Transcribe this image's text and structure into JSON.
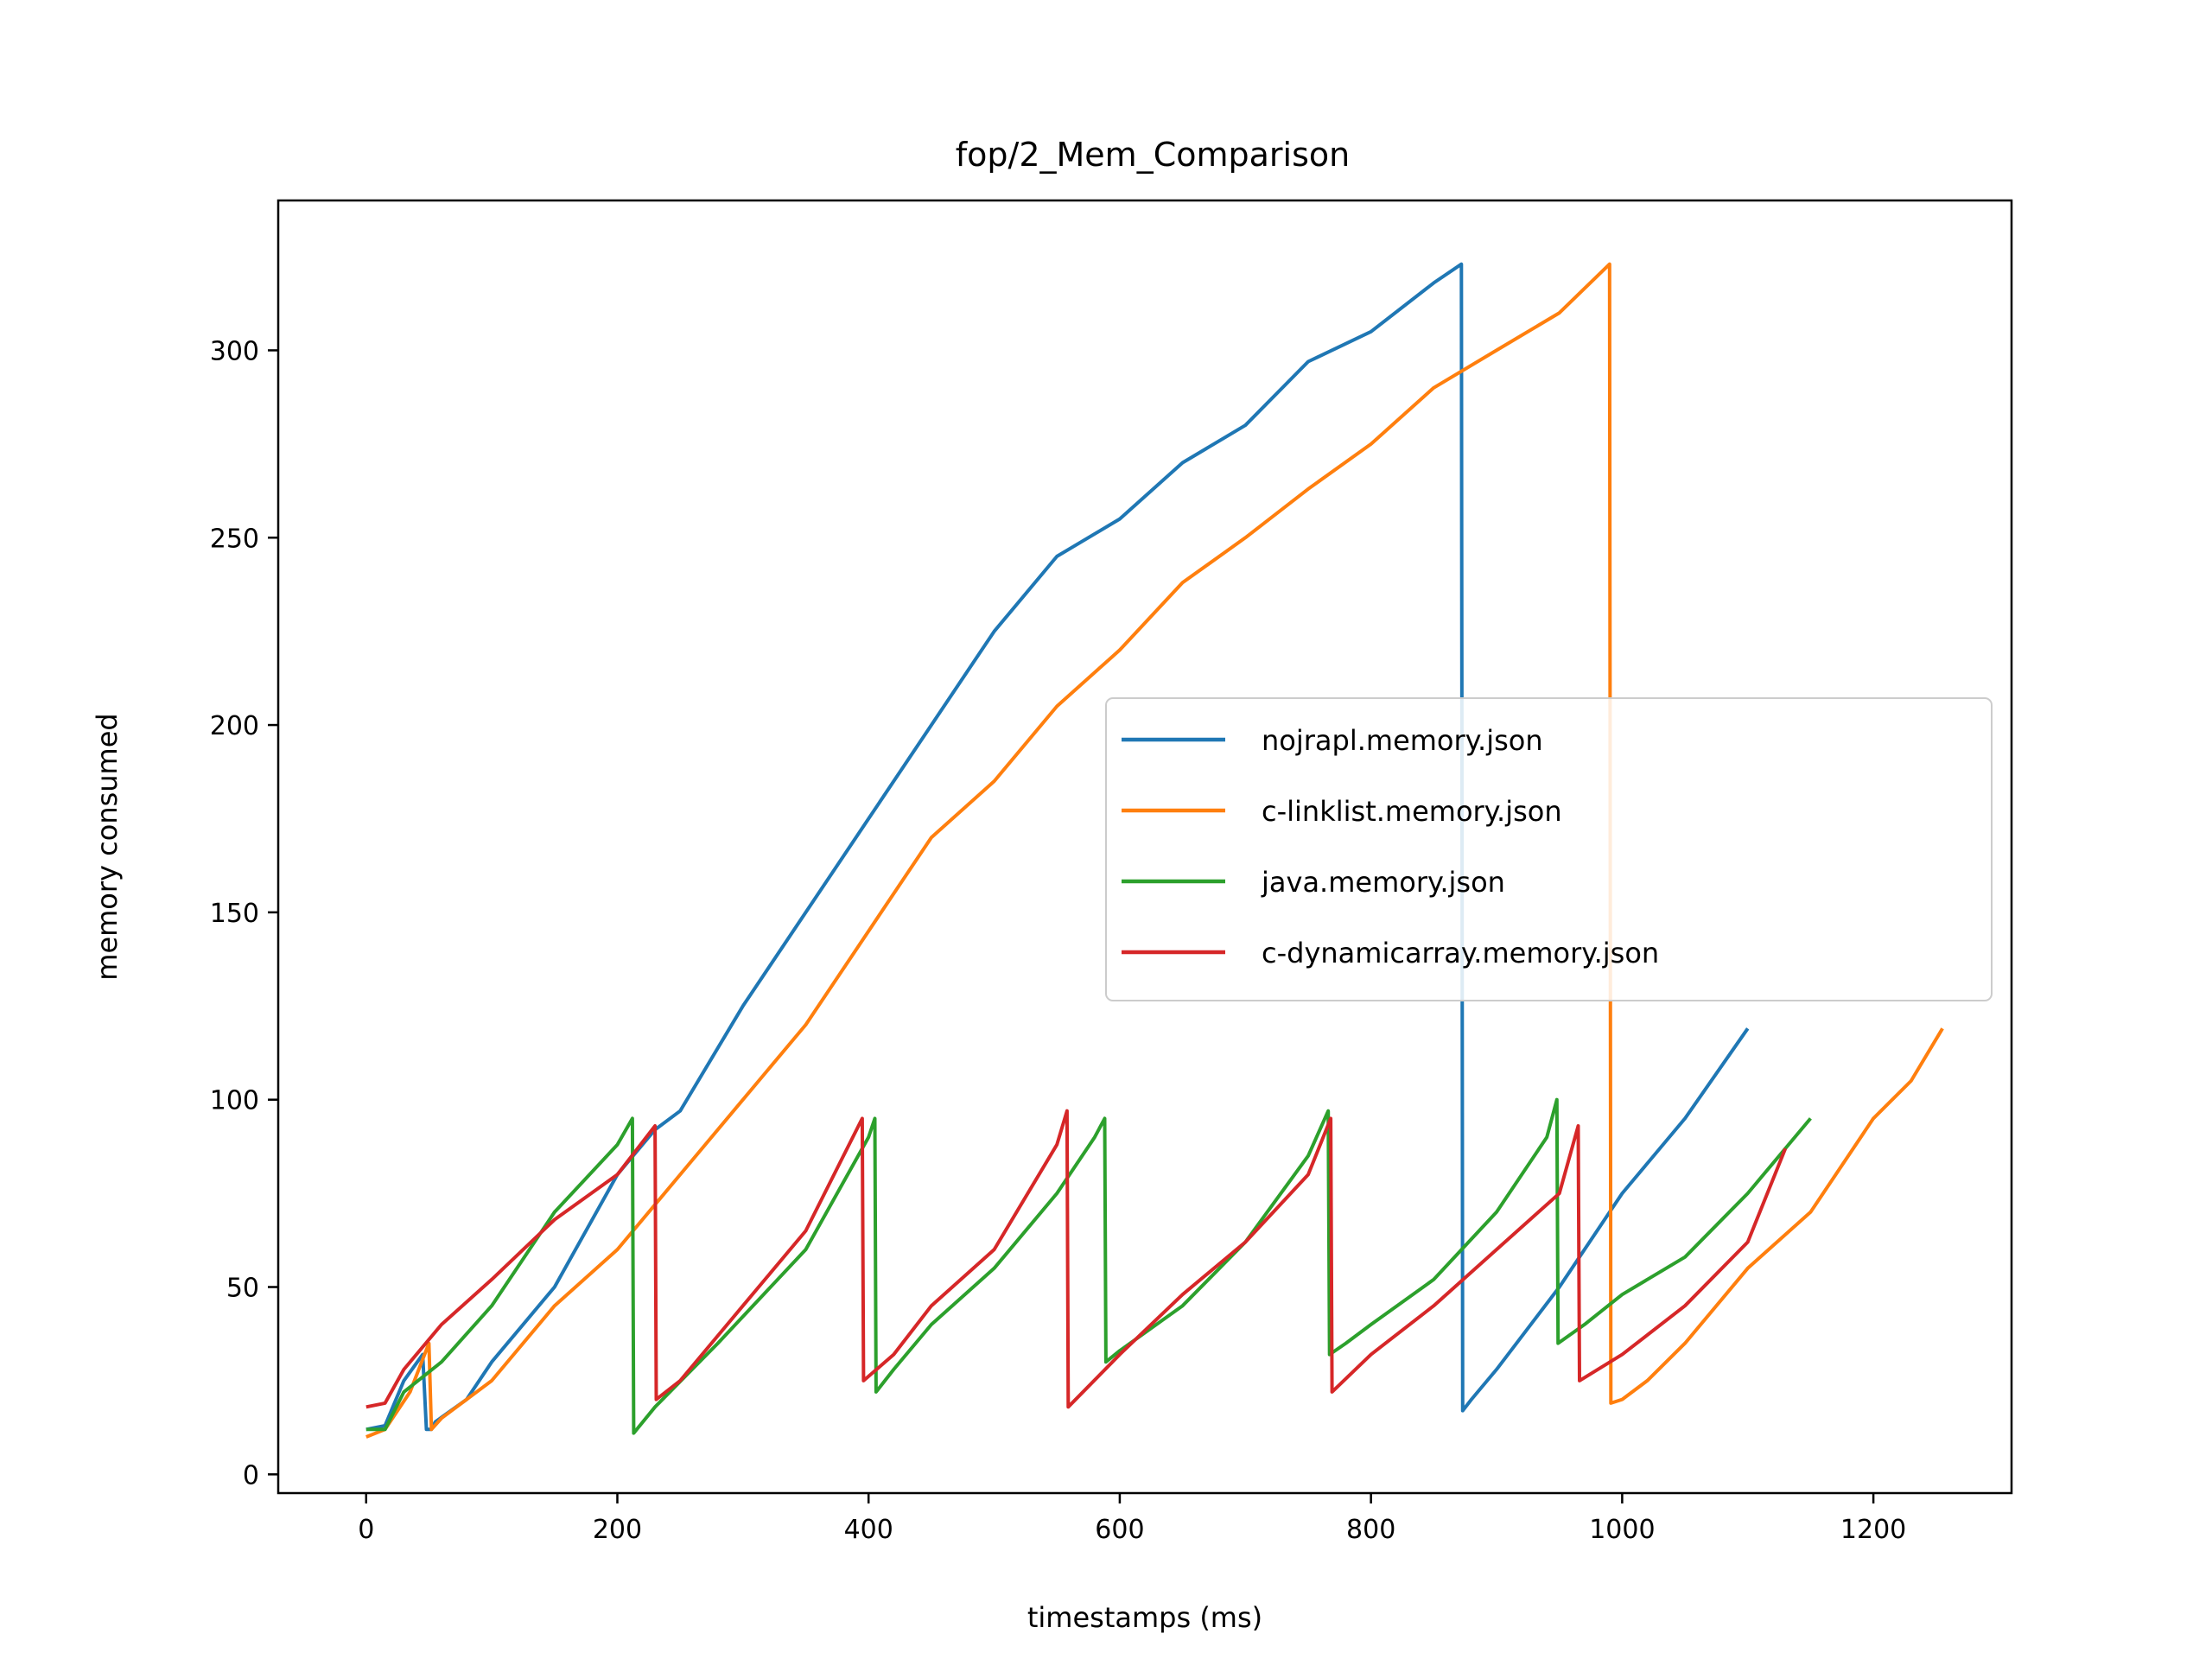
{
  "chart_data": {
    "type": "line",
    "title": "fop/2_Mem_Comparison",
    "xlabel": "timestamps (ms)",
    "ylabel": "memory consumed",
    "xlim": [
      -70,
      1310
    ],
    "ylim": [
      -5,
      340
    ],
    "xticks": [
      0,
      200,
      400,
      600,
      800,
      1000,
      1200
    ],
    "yticks": [
      0,
      50,
      100,
      150,
      200,
      250,
      300
    ],
    "grid": false,
    "legend_position": "center-right",
    "series": [
      {
        "name": "nojrapl.memory.json",
        "color": "#1f77b4",
        "points": [
          [
            0,
            12
          ],
          [
            15,
            13
          ],
          [
            30,
            25
          ],
          [
            45,
            32
          ],
          [
            48,
            12
          ],
          [
            52,
            12
          ],
          [
            55,
            14
          ],
          [
            80,
            20
          ],
          [
            100,
            30
          ],
          [
            150,
            50
          ],
          [
            200,
            80
          ],
          [
            230,
            92
          ],
          [
            250,
            97
          ],
          [
            300,
            125
          ],
          [
            350,
            150
          ],
          [
            400,
            175
          ],
          [
            450,
            200
          ],
          [
            500,
            225
          ],
          [
            550,
            245
          ],
          [
            600,
            255
          ],
          [
            650,
            270
          ],
          [
            700,
            280
          ],
          [
            750,
            297
          ],
          [
            800,
            305
          ],
          [
            850,
            318
          ],
          [
            872,
            323
          ],
          [
            873,
            17
          ],
          [
            880,
            20
          ],
          [
            900,
            28
          ],
          [
            950,
            50
          ],
          [
            1000,
            75
          ],
          [
            1050,
            95
          ],
          [
            1100,
            119
          ]
        ]
      },
      {
        "name": "c-linklist.memory.json",
        "color": "#ff7f0e",
        "points": [
          [
            0,
            10
          ],
          [
            15,
            12
          ],
          [
            35,
            22
          ],
          [
            50,
            35
          ],
          [
            52,
            12
          ],
          [
            60,
            15
          ],
          [
            100,
            25
          ],
          [
            150,
            45
          ],
          [
            200,
            60
          ],
          [
            250,
            80
          ],
          [
            300,
            100
          ],
          [
            350,
            120
          ],
          [
            400,
            145
          ],
          [
            450,
            170
          ],
          [
            500,
            185
          ],
          [
            550,
            205
          ],
          [
            600,
            220
          ],
          [
            650,
            238
          ],
          [
            700,
            250
          ],
          [
            750,
            263
          ],
          [
            800,
            275
          ],
          [
            850,
            290
          ],
          [
            900,
            300
          ],
          [
            950,
            310
          ],
          [
            990,
            323
          ],
          [
            991,
            19
          ],
          [
            1000,
            20
          ],
          [
            1020,
            25
          ],
          [
            1050,
            35
          ],
          [
            1100,
            55
          ],
          [
            1150,
            70
          ],
          [
            1200,
            95
          ],
          [
            1230,
            105
          ],
          [
            1255,
            119
          ]
        ]
      },
      {
        "name": "java.memory.json",
        "color": "#2ca02c",
        "points": [
          [
            0,
            12
          ],
          [
            15,
            12
          ],
          [
            30,
            22
          ],
          [
            60,
            30
          ],
          [
            100,
            45
          ],
          [
            150,
            70
          ],
          [
            200,
            88
          ],
          [
            212,
            95
          ],
          [
            213,
            11
          ],
          [
            230,
            18
          ],
          [
            280,
            35
          ],
          [
            350,
            60
          ],
          [
            400,
            90
          ],
          [
            405,
            95
          ],
          [
            406,
            22
          ],
          [
            420,
            28
          ],
          [
            450,
            40
          ],
          [
            500,
            55
          ],
          [
            550,
            75
          ],
          [
            580,
            90
          ],
          [
            588,
            95
          ],
          [
            589,
            30
          ],
          [
            600,
            33
          ],
          [
            650,
            45
          ],
          [
            700,
            62
          ],
          [
            750,
            85
          ],
          [
            766,
            97
          ],
          [
            767,
            32
          ],
          [
            780,
            35
          ],
          [
            800,
            40
          ],
          [
            850,
            52
          ],
          [
            900,
            70
          ],
          [
            940,
            90
          ],
          [
            948,
            100
          ],
          [
            949,
            35
          ],
          [
            970,
            40
          ],
          [
            1000,
            48
          ],
          [
            1050,
            58
          ],
          [
            1100,
            75
          ],
          [
            1150,
            95
          ]
        ]
      },
      {
        "name": "c-dynamicarray.memory.json",
        "color": "#d62728",
        "points": [
          [
            0,
            18
          ],
          [
            15,
            19
          ],
          [
            30,
            28
          ],
          [
            60,
            40
          ],
          [
            100,
            52
          ],
          [
            150,
            68
          ],
          [
            200,
            80
          ],
          [
            230,
            93
          ],
          [
            231,
            20
          ],
          [
            250,
            25
          ],
          [
            300,
            45
          ],
          [
            350,
            65
          ],
          [
            395,
            95
          ],
          [
            396,
            25
          ],
          [
            420,
            32
          ],
          [
            450,
            45
          ],
          [
            500,
            60
          ],
          [
            550,
            88
          ],
          [
            558,
            97
          ],
          [
            559,
            18
          ],
          [
            600,
            32
          ],
          [
            650,
            48
          ],
          [
            700,
            62
          ],
          [
            750,
            80
          ],
          [
            768,
            95
          ],
          [
            769,
            22
          ],
          [
            800,
            32
          ],
          [
            850,
            45
          ],
          [
            900,
            60
          ],
          [
            950,
            75
          ],
          [
            965,
            93
          ],
          [
            966,
            25
          ],
          [
            1000,
            32
          ],
          [
            1050,
            45
          ],
          [
            1100,
            62
          ],
          [
            1130,
            87
          ]
        ]
      }
    ]
  }
}
